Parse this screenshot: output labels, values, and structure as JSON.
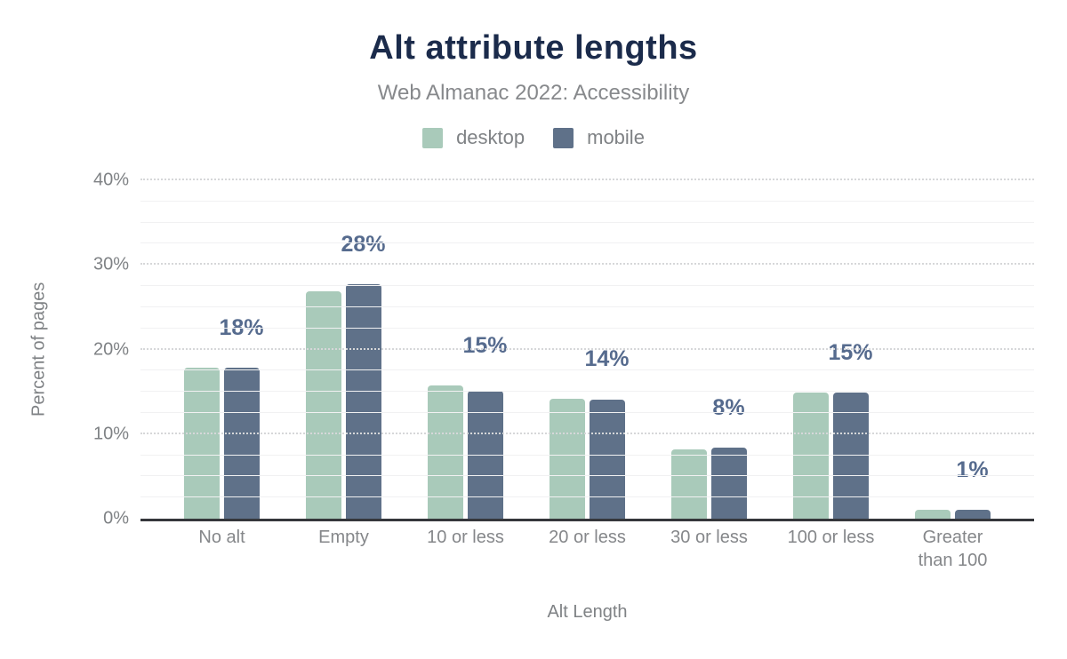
{
  "title": "Alt attribute lengths",
  "subtitle": "Web Almanac 2022: Accessibility",
  "colors": {
    "title": "#1b2b4b",
    "subtitle_gray": "#87898c",
    "axis_gray": "#7f8285",
    "data_label": "#566b8e",
    "desktop": "#a9caba",
    "mobile": "#5f7189",
    "axis_line": "#35373b"
  },
  "legend": [
    {
      "label": "desktop",
      "color": "#a9caba"
    },
    {
      "label": "mobile",
      "color": "#5f7189"
    }
  ],
  "y_axis": {
    "title": "Percent of pages",
    "ticks": [
      "0%",
      "10%",
      "20%",
      "30%",
      "40%"
    ]
  },
  "x_axis": {
    "title": "Alt Length",
    "tick_labels": [
      "No alt",
      "Empty",
      "10 or less",
      "20 or less",
      "30 or less",
      "100 or less",
      "Greater\nthan 100"
    ]
  },
  "chart_data": {
    "type": "bar",
    "title": "Alt attribute lengths",
    "subtitle": "Web Almanac 2022: Accessibility",
    "xlabel": "Alt Length",
    "ylabel": "Percent of pages",
    "ylim": [
      0,
      40
    ],
    "ytick_major_step": 10,
    "ytick_minor_step": 2.5,
    "grid": true,
    "legend_position": "top",
    "categories": [
      "No alt",
      "Empty",
      "10 or less",
      "20 or less",
      "30 or less",
      "100 or less",
      "Greater than 100"
    ],
    "series": [
      {
        "name": "desktop",
        "color": "#a9caba",
        "values": [
          17.9,
          26.9,
          15.8,
          14.2,
          8.2,
          14.9,
          1.0
        ]
      },
      {
        "name": "mobile",
        "color": "#5f7189",
        "values": [
          17.9,
          27.7,
          15.1,
          14.1,
          8.4,
          14.9,
          1.1
        ]
      }
    ],
    "value_labels": [
      "18%",
      "28%",
      "15%",
      "14%",
      "8%",
      "15%",
      "1%"
    ],
    "value_label_anchor": "mobile"
  }
}
